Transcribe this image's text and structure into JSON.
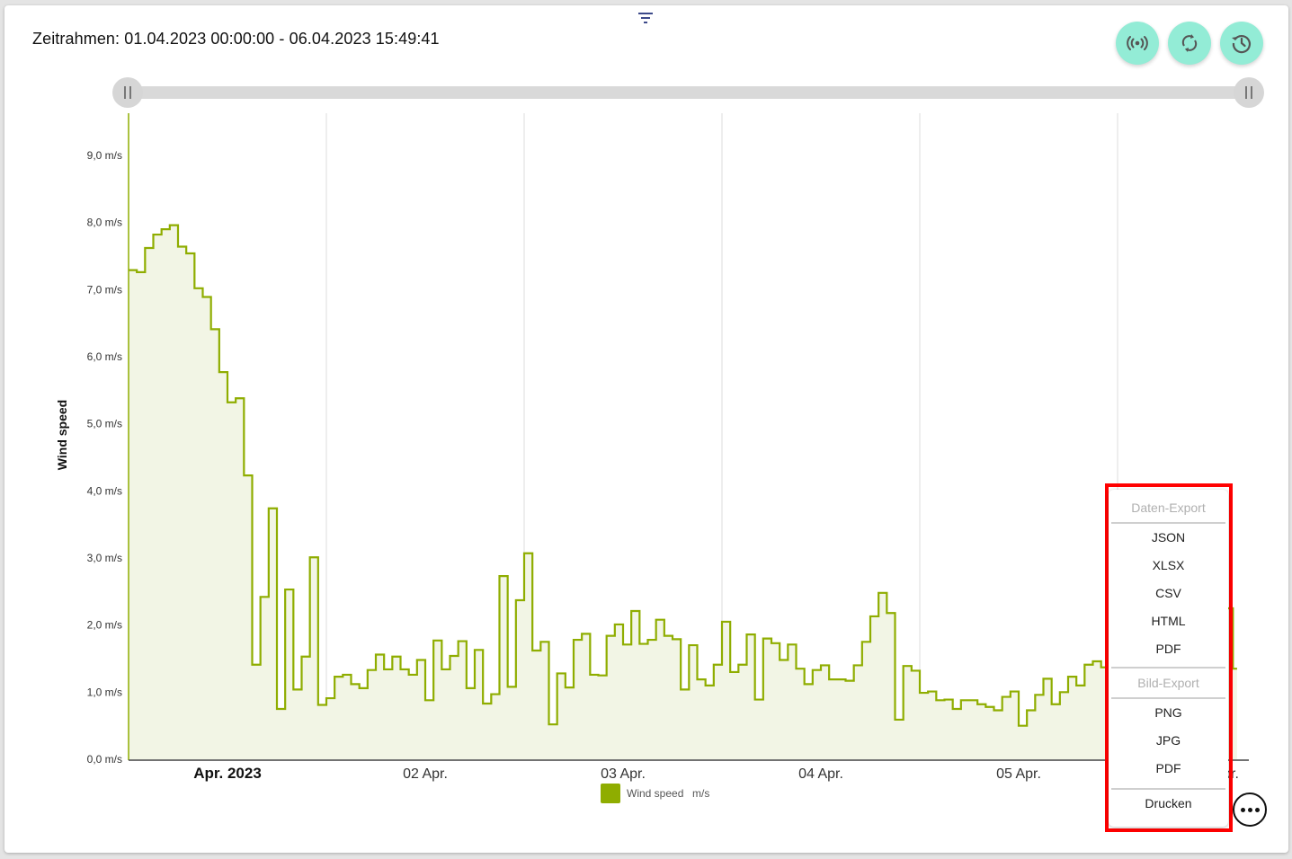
{
  "header": {
    "timeframe": "Zeitrahmen: 01.04.2023 00:00:00 - 06.04.2023 15:49:41",
    "buttons": [
      {
        "name": "live-button",
        "icon": "broadcast-icon"
      },
      {
        "name": "refresh-button",
        "icon": "refresh-icon"
      },
      {
        "name": "history-button",
        "icon": "history-icon"
      }
    ],
    "accent": "#93ecd6"
  },
  "export_menu": {
    "data_header": "Daten-Export",
    "data_items": [
      "JSON",
      "XLSX",
      "CSV",
      "HTML",
      "PDF"
    ],
    "image_header": "Bild-Export",
    "image_items": [
      "PNG",
      "JPG",
      "PDF"
    ],
    "print": "Drucken"
  },
  "chart_data": {
    "type": "area",
    "step": true,
    "ylabel": "Wind speed",
    "ylim": [
      0,
      9.6
    ],
    "yticks": [
      "0,0 m/s",
      "1,0 m/s",
      "2,0 m/s",
      "3,0 m/s",
      "4,0 m/s",
      "5,0 m/s",
      "6,0 m/s",
      "7,0 m/s",
      "8,0 m/s",
      "9,0 m/s"
    ],
    "xticks": [
      "Apr. 2023",
      "02 Apr.",
      "03 Apr.",
      "04 Apr.",
      "05 Apr.",
      "06 Apr."
    ],
    "x_start": "01.04.2023 00:00:00",
    "x_interval": "1 h",
    "grid": "vertical",
    "color": "#8fad00",
    "fill": "#f2f5e5",
    "legend": {
      "name": "Wind speed",
      "unit": "m/s",
      "placement": "bottom"
    },
    "series": [
      {
        "name": "Wind speed",
        "values": [
          7.29,
          7.26,
          7.62,
          7.82,
          7.9,
          7.96,
          7.64,
          7.54,
          7.02,
          6.89,
          6.41,
          5.77,
          5.32,
          5.38,
          4.23,
          1.41,
          2.42,
          3.74,
          0.75,
          2.53,
          1.04,
          1.53,
          3.01,
          0.81,
          0.91,
          1.23,
          1.26,
          1.12,
          1.06,
          1.33,
          1.56,
          1.34,
          1.53,
          1.34,
          1.26,
          1.48,
          0.88,
          1.77,
          1.34,
          1.54,
          1.76,
          1.06,
          1.63,
          0.83,
          0.97,
          2.73,
          1.08,
          2.37,
          3.07,
          1.62,
          1.75,
          0.52,
          1.28,
          1.07,
          1.78,
          1.87,
          1.26,
          1.25,
          1.84,
          2.01,
          1.71,
          2.21,
          1.72,
          1.78,
          2.08,
          1.84,
          1.79,
          1.04,
          1.7,
          1.19,
          1.1,
          1.41,
          2.05,
          1.3,
          1.41,
          1.86,
          0.89,
          1.8,
          1.73,
          1.48,
          1.71,
          1.35,
          1.12,
          1.33,
          1.4,
          1.19,
          1.19,
          1.17,
          1.4,
          1.75,
          2.13,
          2.48,
          2.18,
          0.59,
          1.39,
          1.32,
          0.99,
          1.01,
          0.88,
          0.89,
          0.75,
          0.88,
          0.88,
          0.82,
          0.78,
          0.73,
          0.93,
          1.01,
          0.5,
          0.73,
          0.96,
          1.2,
          0.82,
          1.0,
          1.23,
          1.1,
          1.41,
          1.46,
          1.37,
          1.08,
          null,
          null,
          null,
          null,
          null,
          null,
          null,
          null,
          null,
          null,
          null,
          null,
          null,
          2.25,
          1.35
        ]
      }
    ]
  }
}
